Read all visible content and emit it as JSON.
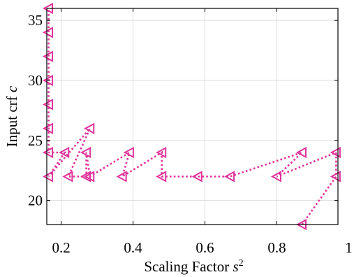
{
  "chart_data": {
    "type": "line",
    "xlabel": "Scaling Factor ",
    "xlabel_symbol": "s",
    "xlabel_exponent": "2",
    "ylabel": "Input crf ",
    "ylabel_symbol": "c",
    "xlim": [
      0.16,
      0.97
    ],
    "ylim": [
      18,
      36
    ],
    "xticks": [
      0.2,
      0.4,
      0.6,
      0.8,
      1
    ],
    "xtick_labels": [
      "0.2",
      "0.4",
      "0.6",
      "0.8",
      "1"
    ],
    "yticks": [
      20,
      25,
      30,
      35
    ],
    "ytick_labels": [
      "20",
      "25",
      "30",
      "35"
    ],
    "grid": true,
    "marker": "left-triangle",
    "line_style": "dotted",
    "color": "#E0339A",
    "series": [
      {
        "points": [
          [
            0.87,
            18
          ],
          [
            0.965,
            22
          ],
          [
            0.965,
            24
          ],
          [
            0.8,
            22
          ],
          [
            0.87,
            24
          ],
          [
            0.67,
            22
          ],
          [
            0.58,
            22
          ],
          [
            0.48,
            22
          ],
          [
            0.48,
            24
          ],
          [
            0.37,
            22
          ],
          [
            0.39,
            24
          ],
          [
            0.28,
            22
          ],
          [
            0.27,
            24
          ],
          [
            0.27,
            22
          ],
          [
            0.22,
            22
          ],
          [
            0.28,
            26
          ],
          [
            0.165,
            22
          ],
          [
            0.21,
            24
          ],
          [
            0.165,
            24
          ],
          [
            0.165,
            26
          ],
          [
            0.165,
            28
          ],
          [
            0.165,
            30
          ],
          [
            0.165,
            32
          ],
          [
            0.165,
            34
          ],
          [
            0.165,
            36
          ]
        ]
      }
    ]
  }
}
